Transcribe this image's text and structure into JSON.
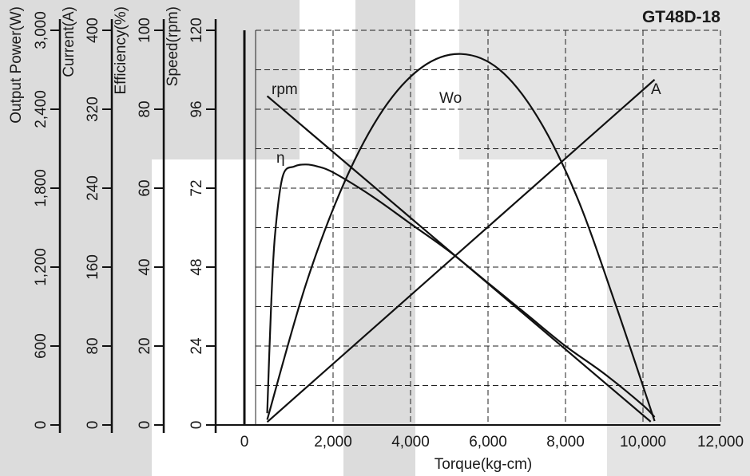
{
  "chart_data": {
    "type": "line",
    "title": "GT48D-18",
    "xlabel": "Torque(kg-cm)",
    "xlim": [
      0,
      12000
    ],
    "x_ticks": [
      "0",
      "2,000",
      "4,000",
      "6,000",
      "8,000",
      "10,000",
      "12,000"
    ],
    "grid": true,
    "y_axes": [
      {
        "id": "power",
        "label": "Output Power(W)",
        "ylim": [
          0,
          3000
        ],
        "ticks": [
          "0",
          "600",
          "1,200",
          "1,800",
          "2,400",
          "3,000"
        ]
      },
      {
        "id": "current",
        "label": "Current(A)",
        "ylim": [
          0,
          400
        ],
        "ticks": [
          "0",
          "80",
          "160",
          "240",
          "320",
          "400"
        ]
      },
      {
        "id": "efficiency",
        "label": "Efficiency(%)",
        "ylim": [
          0,
          100
        ],
        "ticks": [
          "0",
          "20",
          "40",
          "60",
          "80",
          "100"
        ]
      },
      {
        "id": "speed",
        "label": "Speed(rpm)",
        "ylim": [
          0,
          120
        ],
        "ticks": [
          "0",
          "24",
          "48",
          "72",
          "96",
          "120"
        ]
      }
    ],
    "series": [
      {
        "name": "rpm",
        "axis": "speed",
        "x": [
          300,
          10200
        ],
        "y": [
          100,
          1
        ]
      },
      {
        "name": "A",
        "axis": "current",
        "x": [
          300,
          10300
        ],
        "y": [
          3,
          350
        ]
      },
      {
        "name": "Wo",
        "axis": "power",
        "x": [
          300,
          1300,
          2300,
          3300,
          4300,
          5300,
          6300,
          7300,
          8300,
          9300,
          10300
        ],
        "y": [
          40,
          1070,
          1850,
          2400,
          2720,
          2820,
          2700,
          2330,
          1730,
          910,
          30
        ]
      },
      {
        "name": "η",
        "axis": "efficiency",
        "x": [
          300,
          400,
          500,
          700,
          1000,
          1300,
          1600,
          2000,
          3000,
          4000,
          5000,
          6000,
          7000,
          8000,
          9000,
          10000,
          10300
        ],
        "y": [
          3,
          30,
          48,
          63,
          65.5,
          66,
          65.5,
          64,
          58,
          51,
          44,
          36,
          28,
          20,
          13,
          5,
          2
        ]
      }
    ]
  }
}
